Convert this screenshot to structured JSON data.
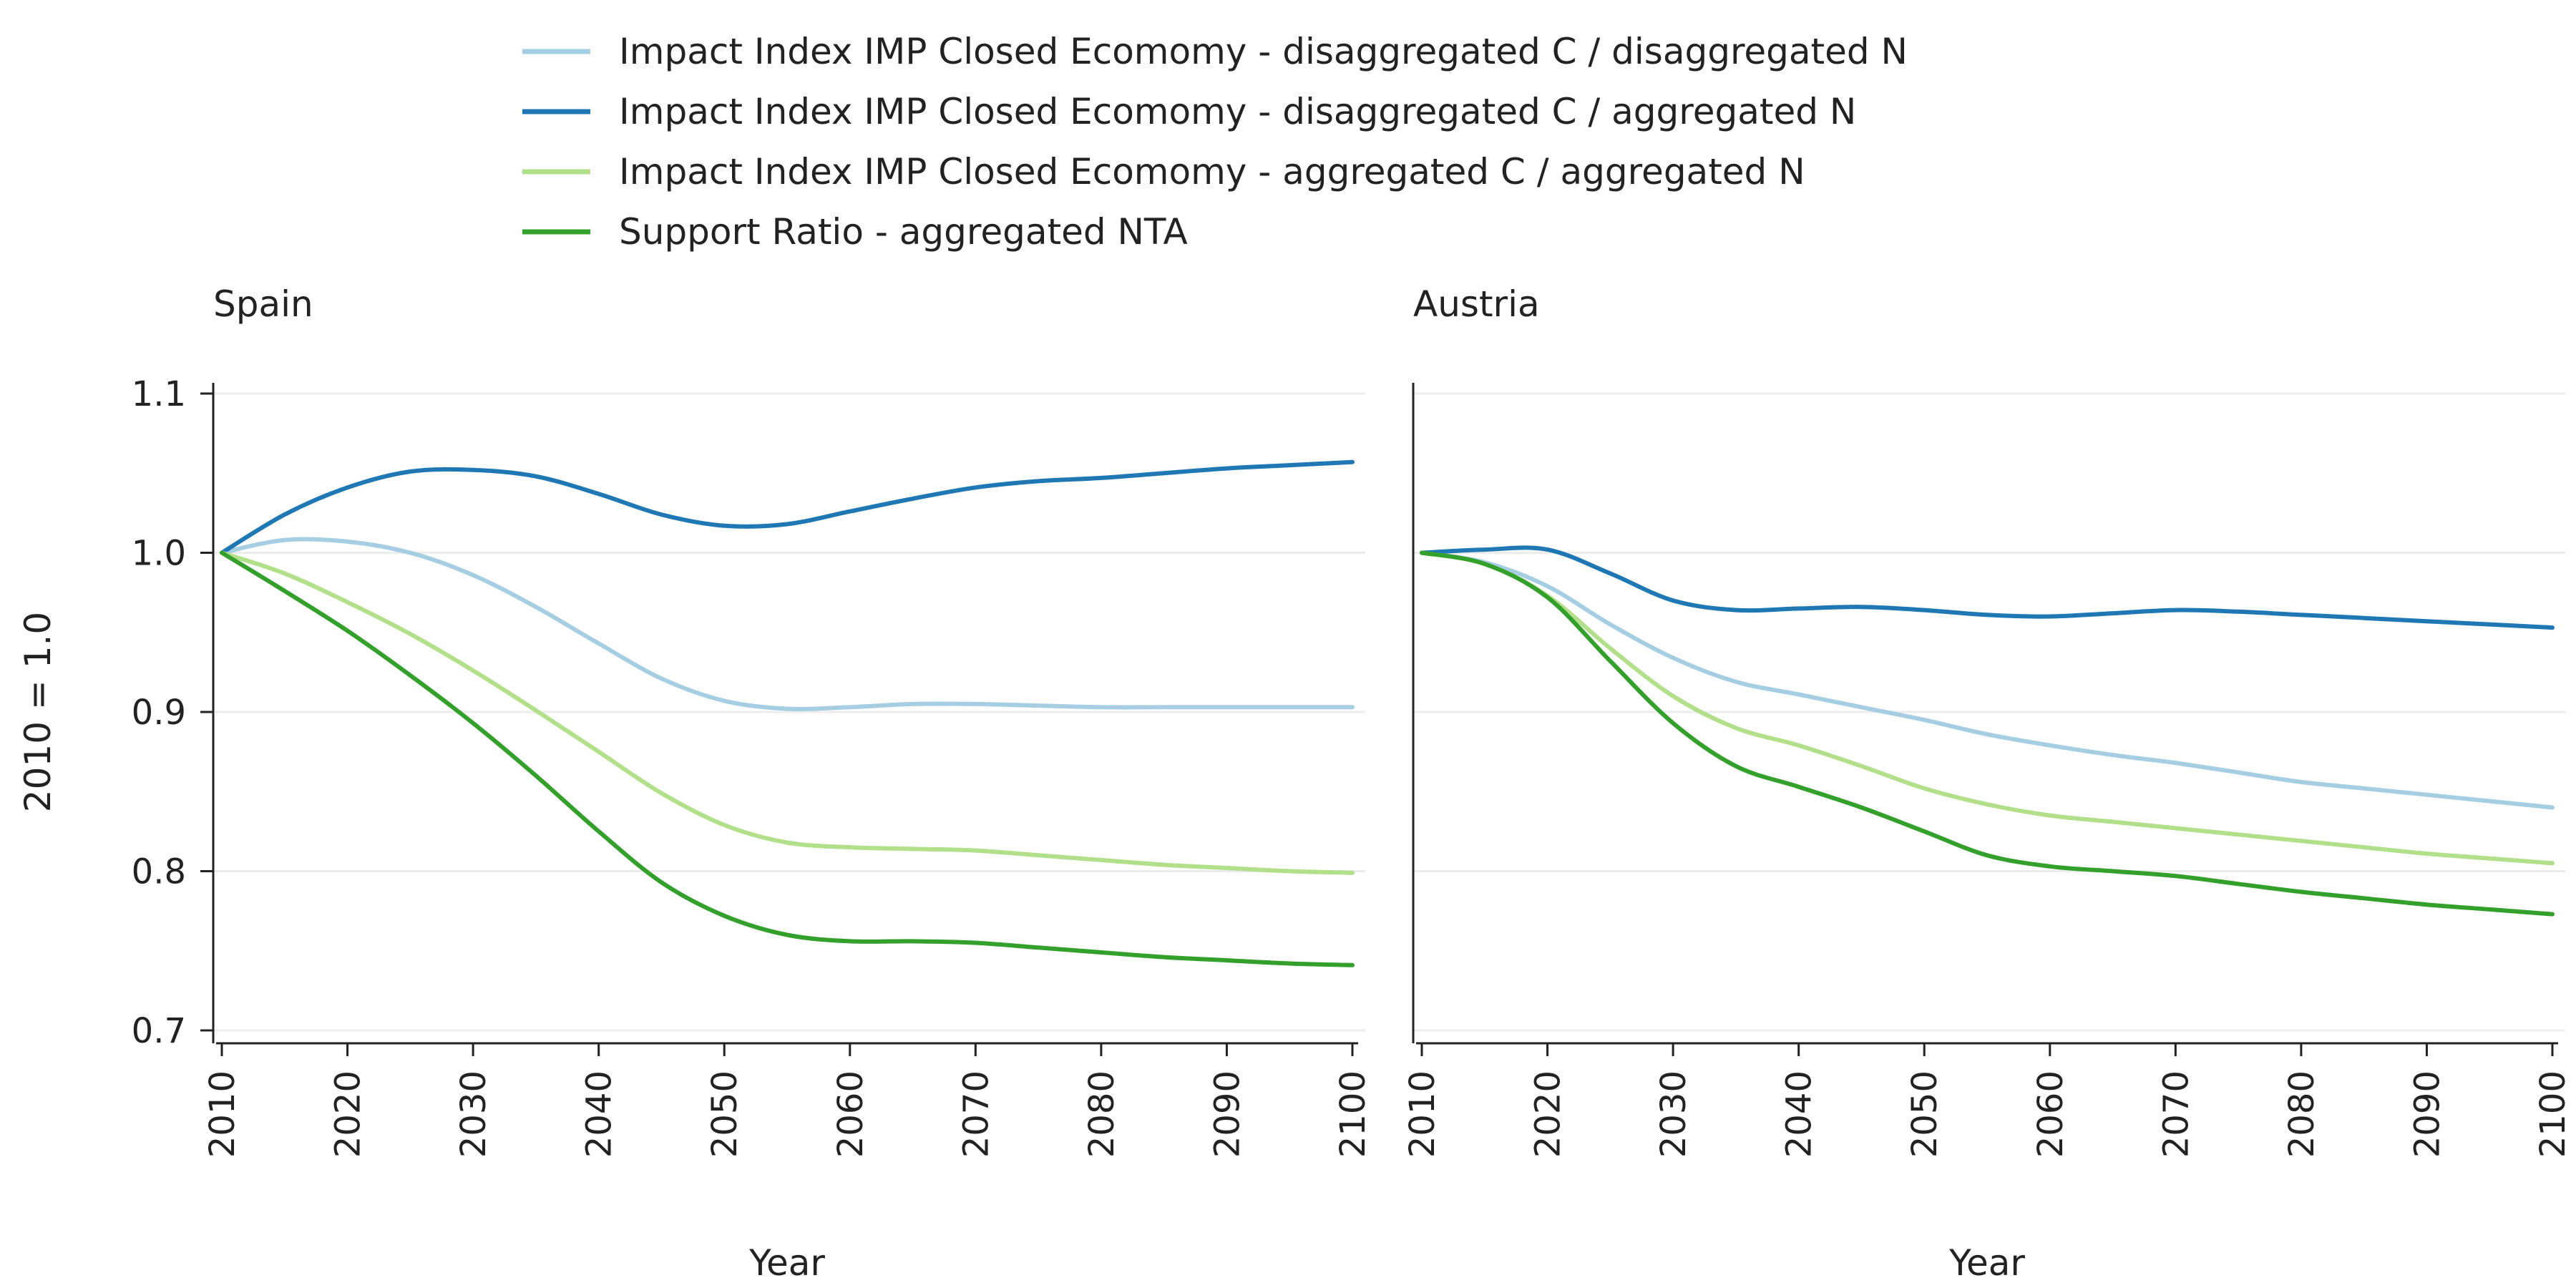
{
  "chart_data": {
    "type": "line",
    "legend": [
      {
        "label": "Impact Index IMP Closed Ecomomy - disaggregated C / disaggregated N",
        "color": "#a6cee3"
      },
      {
        "label": "Impact Index IMP Closed Ecomomy - disaggregated C / aggregated N",
        "color": "#1f78b4"
      },
      {
        "label": "Impact Index IMP Closed Ecomomy - aggregated C / aggregated N",
        "color": "#b2df8a"
      },
      {
        "label": "Support Ratio - aggregated NTA",
        "color": "#33a02c"
      }
    ],
    "ylabel": "2010 = 1.0",
    "xlabel": "Year",
    "ylim": [
      0.7,
      1.1
    ],
    "yticks": [
      "0.7",
      "0.8",
      "0.9",
      "1.0",
      "1.1"
    ],
    "xlim": [
      2010,
      2100
    ],
    "xticks": [
      "2010",
      "2020",
      "2030",
      "2040",
      "2050",
      "2060",
      "2070",
      "2080",
      "2090",
      "2100"
    ],
    "grid": true,
    "legend_position": "top",
    "panels": [
      {
        "title": "Spain",
        "x": [
          2010,
          2015,
          2020,
          2025,
          2030,
          2035,
          2040,
          2045,
          2050,
          2055,
          2060,
          2065,
          2070,
          2075,
          2080,
          2085,
          2090,
          2095,
          2100
        ],
        "series": [
          {
            "name": "Impact Index IMP Closed Ecomomy - disaggregated C / disaggregated N",
            "values": [
              1.0,
              1.008,
              1.007,
              1.0,
              0.986,
              0.966,
              0.943,
              0.921,
              0.907,
              0.902,
              0.903,
              0.905,
              0.905,
              0.904,
              0.903,
              0.903,
              0.903,
              0.903,
              0.903
            ]
          },
          {
            "name": "Impact Index IMP Closed Ecomomy - disaggregated C / aggregated N",
            "values": [
              1.0,
              1.024,
              1.041,
              1.051,
              1.052,
              1.048,
              1.037,
              1.024,
              1.017,
              1.018,
              1.026,
              1.034,
              1.041,
              1.045,
              1.047,
              1.05,
              1.053,
              1.055,
              1.057
            ]
          },
          {
            "name": "Impact Index IMP Closed Ecomomy - aggregated C / aggregated N",
            "values": [
              1.0,
              0.987,
              0.969,
              0.949,
              0.926,
              0.901,
              0.875,
              0.849,
              0.829,
              0.818,
              0.815,
              0.814,
              0.813,
              0.81,
              0.807,
              0.804,
              0.802,
              0.8,
              0.799
            ]
          },
          {
            "name": "Support Ratio - aggregated NTA",
            "values": [
              1.0,
              0.976,
              0.951,
              0.923,
              0.893,
              0.86,
              0.825,
              0.793,
              0.772,
              0.76,
              0.756,
              0.756,
              0.755,
              0.752,
              0.749,
              0.746,
              0.744,
              0.742,
              0.741
            ]
          }
        ]
      },
      {
        "title": "Austria",
        "x": [
          2010,
          2015,
          2020,
          2025,
          2030,
          2035,
          2040,
          2045,
          2050,
          2055,
          2060,
          2065,
          2070,
          2075,
          2080,
          2085,
          2090,
          2095,
          2100
        ],
        "series": [
          {
            "name": "Impact Index IMP Closed Ecomomy - disaggregated C / disaggregated N",
            "values": [
              1.0,
              0.994,
              0.979,
              0.955,
              0.934,
              0.919,
              0.911,
              0.903,
              0.895,
              0.886,
              0.879,
              0.873,
              0.868,
              0.862,
              0.856,
              0.852,
              0.848,
              0.844,
              0.84
            ]
          },
          {
            "name": "Impact Index IMP Closed Ecomomy - disaggregated C / aggregated N",
            "values": [
              1.0,
              1.002,
              1.002,
              0.987,
              0.97,
              0.964,
              0.965,
              0.966,
              0.964,
              0.961,
              0.96,
              0.962,
              0.964,
              0.963,
              0.961,
              0.959,
              0.957,
              0.955,
              0.953
            ]
          },
          {
            "name": "Impact Index IMP Closed Ecomomy - aggregated C / aggregated N",
            "values": [
              1.0,
              0.993,
              0.973,
              0.94,
              0.91,
              0.89,
              0.879,
              0.866,
              0.852,
              0.842,
              0.835,
              0.831,
              0.827,
              0.823,
              0.819,
              0.815,
              0.811,
              0.808,
              0.805
            ]
          },
          {
            "name": "Support Ratio - aggregated NTA",
            "values": [
              1.0,
              0.993,
              0.972,
              0.932,
              0.893,
              0.866,
              0.853,
              0.84,
              0.825,
              0.81,
              0.803,
              0.8,
              0.797,
              0.792,
              0.787,
              0.783,
              0.779,
              0.776,
              0.773
            ]
          }
        ]
      }
    ]
  }
}
